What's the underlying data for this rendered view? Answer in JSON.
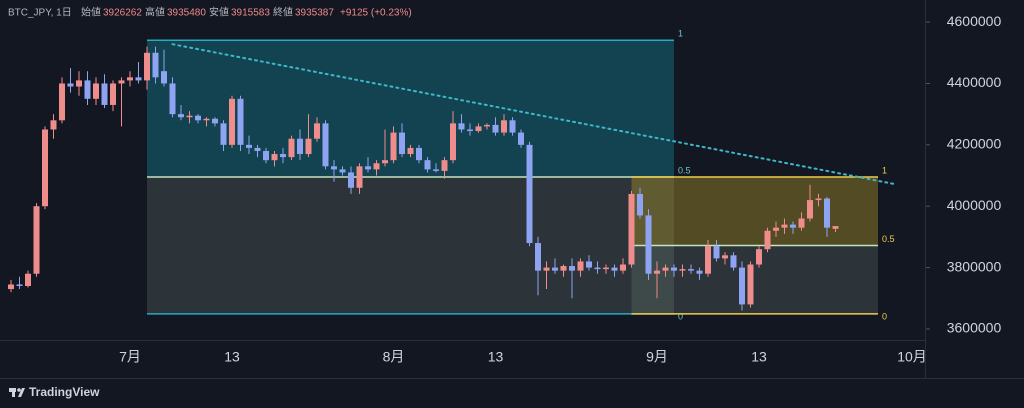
{
  "chart_data": {
    "type": "candlestick",
    "header": {
      "symbol": "BTC_JPY, 1日",
      "open_label": "始値",
      "high_label": "高値",
      "low_label": "安値",
      "close_label": "終値",
      "change": "+9125 (+0.23%)"
    },
    "footer": "TradingView",
    "up_color": "#ef8c8c",
    "down_color": "#8ea4f2",
    "categories": [
      null,
      null,
      null,
      null,
      null,
      null,
      null,
      null,
      null,
      null,
      null,
      null,
      null,
      null,
      "7月",
      null,
      null,
      null,
      null,
      null,
      null,
      null,
      null,
      null,
      null,
      null,
      "13",
      null,
      null,
      null,
      null,
      null,
      null,
      null,
      null,
      null,
      null,
      null,
      null,
      null,
      null,
      null,
      null,
      null,
      null,
      "8月",
      null,
      null,
      null,
      null,
      null,
      null,
      null,
      null,
      null,
      null,
      null,
      "13",
      null,
      null,
      null,
      null,
      null,
      null,
      null,
      null,
      null,
      null,
      null,
      null,
      null,
      null,
      null,
      null,
      null,
      null,
      "9月",
      null,
      null,
      null,
      null,
      null,
      null,
      null,
      null,
      null,
      null,
      null,
      "13",
      null,
      null,
      null,
      null,
      null,
      null,
      null,
      null,
      null,
      null,
      null,
      null,
      null,
      null,
      null,
      null,
      null,
      "10月"
    ],
    "open": [
      3730000,
      3745000,
      3740000,
      3780000,
      4000000,
      4250000,
      4280000,
      4400000,
      4390000,
      4410000,
      4350000,
      4400000,
      4330000,
      4400000,
      4410000,
      4420000,
      4410000,
      4500000,
      4440000,
      4400000,
      4300000,
      4290000,
      4295000,
      4280000,
      4285000,
      4270000,
      4200000,
      4350000,
      4200000,
      4190000,
      4180000,
      4150000,
      4170000,
      4160000,
      4220000,
      4170000,
      4220000,
      4270000,
      4130000,
      4120000,
      4110000,
      4060000,
      4130000,
      4120000,
      4140000,
      4150000,
      4240000,
      4170000,
      4190000,
      4150000,
      4120000,
      4115000,
      4150000,
      4270000,
      4250000,
      4245000,
      4260000,
      4265000,
      4240000,
      4280000,
      4240000,
      4200000,
      3880000,
      3790000,
      3800000,
      3790000,
      3805000,
      3790000,
      3820000,
      3800000,
      3795000,
      3800000,
      3790000,
      3810000,
      4040000,
      3970000,
      3780000,
      3790000,
      3800000,
      3790000,
      3795000,
      3790000,
      3780000,
      3870000,
      3830000,
      3840000,
      3800000,
      3680000,
      3810000,
      3860000,
      3920000,
      3930000,
      3940000,
      3930000,
      3960000,
      4020000,
      4025000,
      3926262,
      null,
      null,
      null,
      null,
      null,
      null,
      null,
      null,
      null
    ],
    "high": [
      3760000,
      3770000,
      3790000,
      4010000,
      4260000,
      4300000,
      4420000,
      4450000,
      4440000,
      4440000,
      4420000,
      4430000,
      4410000,
      4420000,
      4440000,
      4470000,
      4520000,
      4520000,
      4510000,
      4420000,
      4330000,
      4310000,
      4300000,
      4290000,
      4290000,
      4280000,
      4360000,
      4360000,
      4230000,
      4200000,
      4190000,
      4180000,
      4190000,
      4230000,
      4250000,
      4300000,
      4290000,
      4280000,
      4150000,
      4130000,
      4130000,
      4140000,
      4160000,
      4150000,
      4250000,
      4260000,
      4270000,
      4200000,
      4200000,
      4160000,
      4140000,
      4160000,
      4310000,
      4300000,
      4270000,
      4270000,
      4270000,
      4290000,
      4300000,
      4290000,
      4250000,
      4210000,
      3900000,
      3820000,
      3830000,
      3810000,
      3830000,
      3830000,
      3840000,
      3820000,
      3810000,
      3810000,
      3830000,
      4050000,
      4060000,
      3990000,
      3820000,
      3810000,
      3810000,
      3810000,
      3810000,
      3800000,
      3890000,
      3890000,
      3850000,
      3850000,
      3820000,
      3820000,
      3870000,
      3930000,
      3950000,
      3960000,
      3950000,
      3980000,
      4070000,
      4040000,
      4030000,
      3935480,
      null,
      null,
      null,
      null,
      null,
      null,
      null,
      null,
      null
    ],
    "low": [
      3720000,
      3730000,
      3735000,
      3770000,
      3990000,
      4220000,
      4270000,
      4370000,
      4360000,
      4330000,
      4330000,
      4320000,
      4310000,
      4260000,
      4390000,
      4400000,
      4380000,
      4400000,
      4390000,
      4290000,
      4280000,
      4270000,
      4270000,
      4260000,
      4260000,
      4180000,
      4190000,
      4180000,
      4170000,
      4160000,
      4140000,
      4130000,
      4140000,
      4150000,
      4150000,
      4160000,
      4210000,
      4120000,
      4080000,
      4100000,
      4040000,
      4040000,
      4110000,
      4100000,
      4130000,
      4140000,
      4160000,
      4160000,
      4140000,
      4110000,
      4110000,
      4090000,
      4140000,
      4240000,
      4230000,
      4240000,
      4250000,
      4230000,
      4230000,
      4230000,
      4190000,
      3870000,
      3710000,
      3730000,
      3780000,
      3770000,
      3700000,
      3770000,
      3790000,
      3780000,
      3780000,
      3770000,
      3780000,
      3800000,
      3960000,
      3760000,
      3700000,
      3770000,
      3770000,
      3770000,
      3780000,
      3760000,
      3770000,
      3820000,
      3810000,
      3790000,
      3660000,
      3670000,
      3800000,
      3850000,
      3900000,
      3910000,
      3910000,
      3920000,
      3950000,
      4000000,
      3900000,
      3915583,
      null,
      null,
      null,
      null,
      null,
      null,
      null,
      null,
      null
    ],
    "close": [
      3745000,
      3740000,
      3780000,
      4000000,
      4250000,
      4280000,
      4400000,
      4390000,
      4410000,
      4350000,
      4400000,
      4330000,
      4400000,
      4410000,
      4420000,
      4410000,
      4500000,
      4420000,
      4400000,
      4300000,
      4290000,
      4295000,
      4280000,
      4285000,
      4270000,
      4200000,
      4350000,
      4200000,
      4190000,
      4180000,
      4150000,
      4170000,
      4160000,
      4220000,
      4170000,
      4220000,
      4270000,
      4130000,
      4120000,
      4110000,
      4060000,
      4130000,
      4120000,
      4140000,
      4150000,
      4240000,
      4170000,
      4190000,
      4150000,
      4120000,
      4115000,
      4150000,
      4270000,
      4250000,
      4245000,
      4260000,
      4265000,
      4240000,
      4280000,
      4240000,
      4200000,
      3880000,
      3790000,
      3800000,
      3790000,
      3805000,
      3790000,
      3820000,
      3800000,
      3795000,
      3800000,
      3790000,
      3810000,
      4040000,
      3970000,
      3780000,
      3790000,
      3800000,
      3790000,
      3795000,
      3790000,
      3780000,
      3870000,
      3830000,
      3840000,
      3800000,
      3680000,
      3810000,
      3860000,
      3920000,
      3930000,
      3940000,
      3930000,
      3960000,
      4020000,
      4025000,
      3930000,
      3935387,
      null,
      null,
      null,
      null,
      null,
      null,
      null,
      null,
      null
    ],
    "ylim": [
      3564000,
      4672000
    ],
    "yticks": [
      3600000,
      3800000,
      4000000,
      4200000,
      4400000,
      4600000
    ],
    "fib": [
      {
        "start": 16,
        "end": 78,
        "high": 4541000,
        "low": 3649000,
        "levels": [
          1,
          0.5,
          0
        ],
        "color": "#29a9c2",
        "fill_upper": "rgba(20,120,140,0.45)",
        "fill_lower": "rgba(110,130,120,0.28)",
        "label_color": "#6fc3d4"
      },
      {
        "start": 73,
        "end": 102,
        "high": 4095000,
        "low": 3649000,
        "levels": [
          1,
          0.5,
          0
        ],
        "color": "#f0cc4a",
        "fill_upper": "rgba(160,140,40,0.45)",
        "fill_lower": "rgba(110,130,120,0.28)",
        "label_color": "#f0cc4a"
      }
    ],
    "trendline": {
      "start": [
        19,
        4528000
      ],
      "end": [
        104,
        4072000
      ],
      "color": "#3cb8c8"
    }
  }
}
